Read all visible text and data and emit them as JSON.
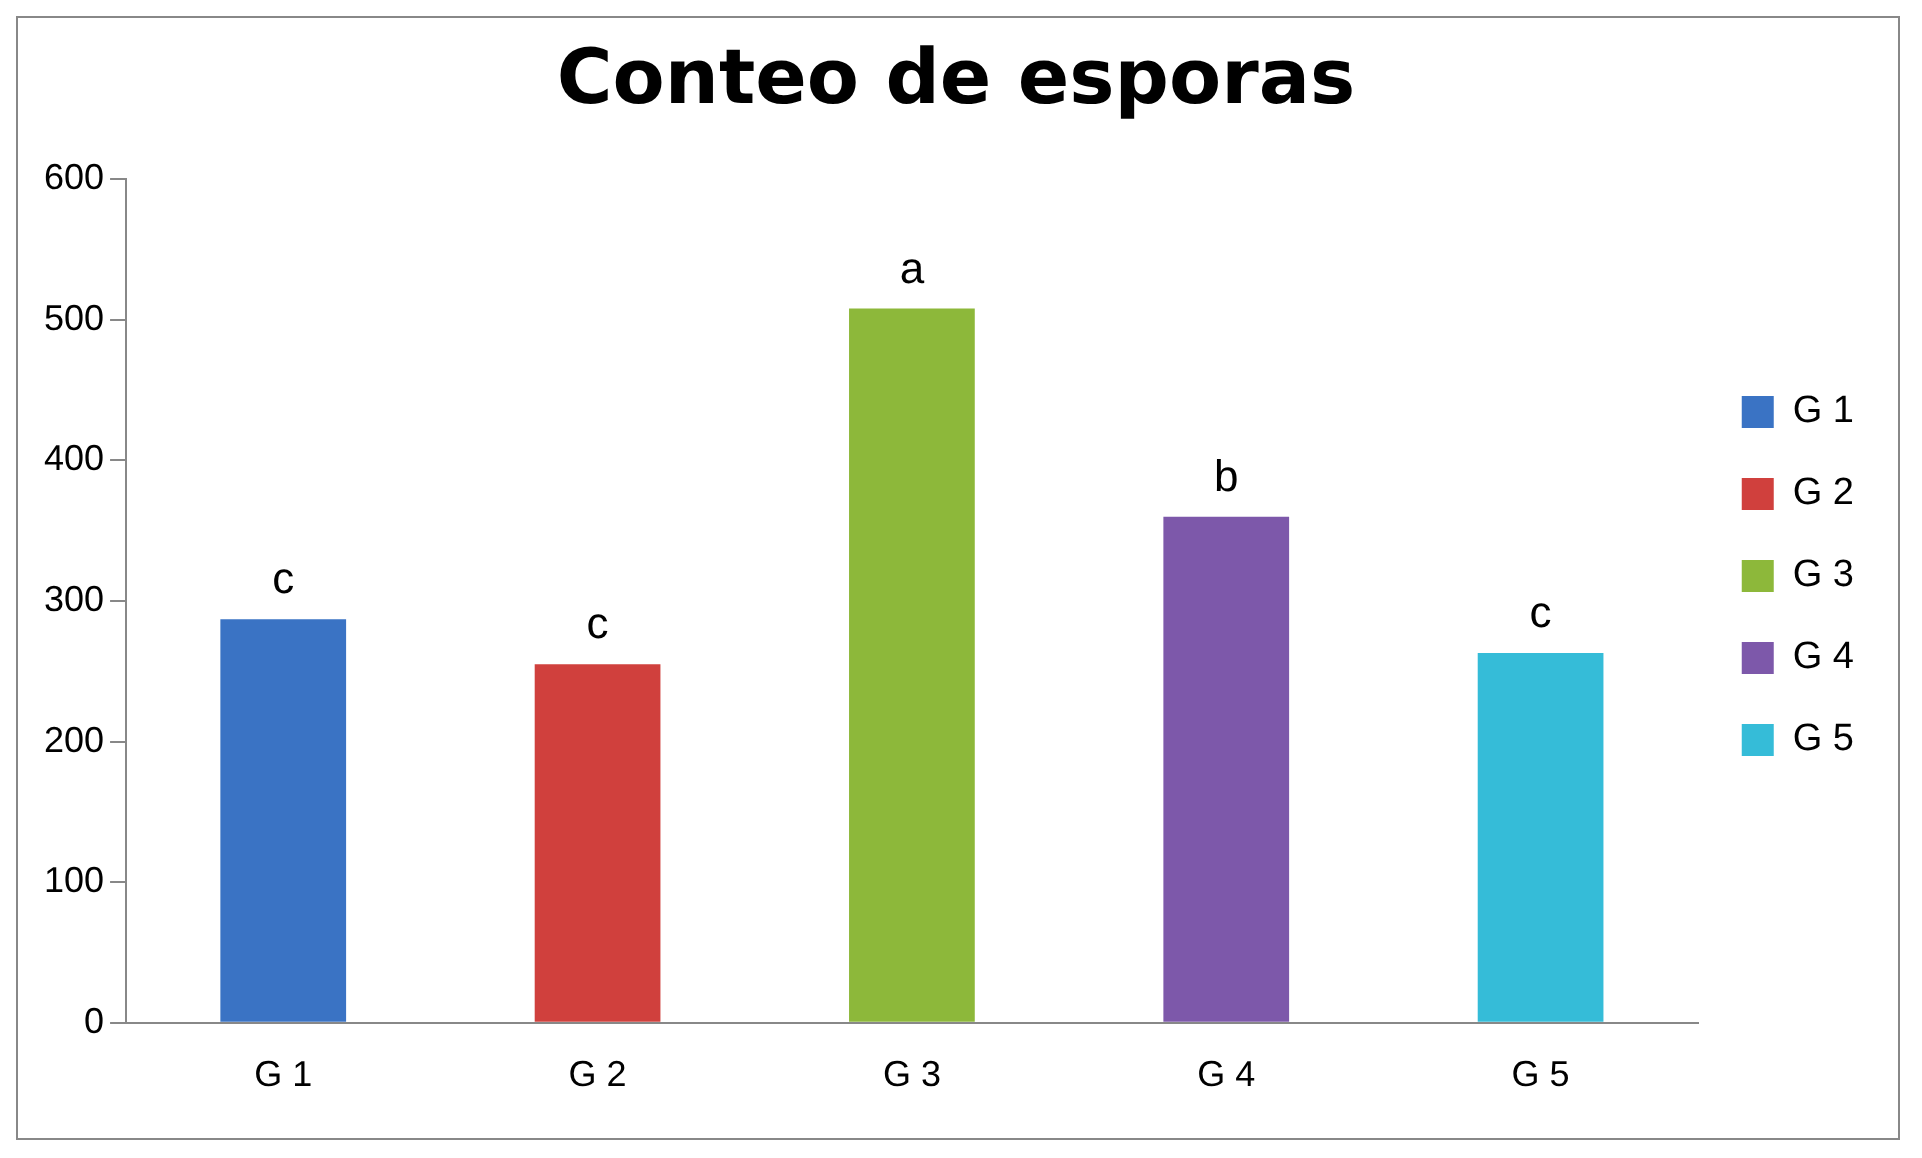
{
  "chart_data": {
    "type": "bar",
    "title": "Conteo de esporas",
    "categories": [
      "G 1",
      "G 2",
      "G 3",
      "G 4",
      "G 5"
    ],
    "series": [
      {
        "name": "G 1",
        "color": "#3a73c4",
        "values": [
          287,
          null,
          null,
          null,
          null
        ]
      },
      {
        "name": "G 2",
        "color": "#d0403d",
        "values": [
          null,
          255,
          null,
          null,
          null
        ]
      },
      {
        "name": "G 3",
        "color": "#8db83a",
        "values": [
          null,
          null,
          508,
          null,
          null
        ]
      },
      {
        "name": "G 4",
        "color": "#7d58aa",
        "values": [
          null,
          null,
          null,
          360,
          null
        ]
      },
      {
        "name": "G 5",
        "color": "#35bcd8",
        "values": [
          null,
          null,
          null,
          null,
          263
        ]
      }
    ],
    "ylim": [
      0,
      600
    ],
    "yticks": [
      0,
      100,
      200,
      300,
      400,
      500,
      600
    ],
    "grid": false,
    "legend": "right",
    "annotations": [
      {
        "text": "c",
        "x": "G 1",
        "y": 287
      },
      {
        "text": "c",
        "x": "G 2",
        "y": 255
      },
      {
        "text": "a",
        "x": "G 3",
        "y": 508
      },
      {
        "text": "b",
        "x": "G 4",
        "y": 360
      },
      {
        "text": "c",
        "x": "G 5",
        "y": 263
      }
    ]
  }
}
